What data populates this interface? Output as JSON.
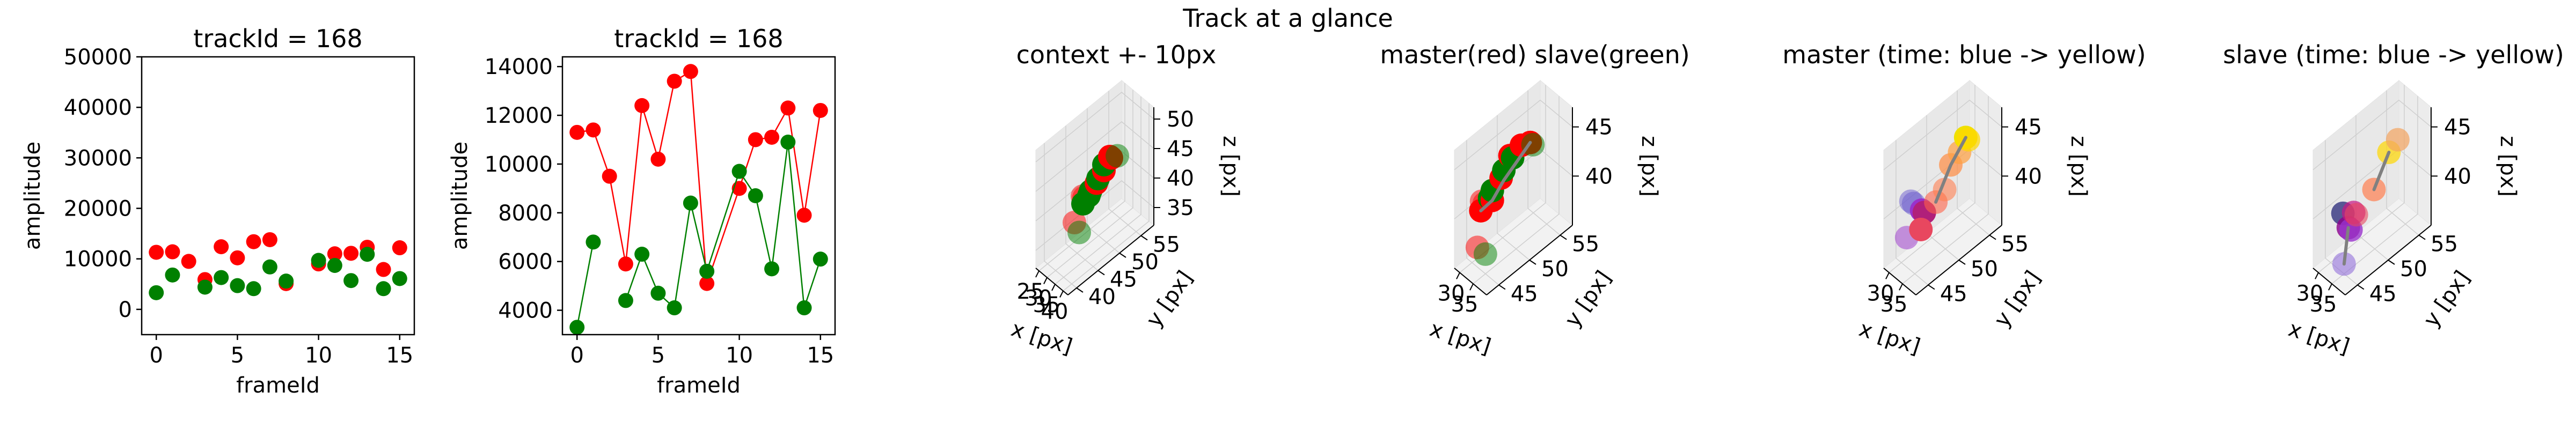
{
  "figure": {
    "suptitle": "Track at a glance"
  },
  "chart_data": [
    {
      "type": "scatter",
      "title": "trackId = 168",
      "xlabel": "frameId",
      "ylabel": "amplitude",
      "xlim": [
        -0.9,
        15.9
      ],
      "ylim": [
        -5000,
        50000
      ],
      "xticks": [
        0,
        5,
        10,
        15
      ],
      "yticks": [
        0,
        10000,
        20000,
        30000,
        40000,
        50000
      ],
      "lines": false,
      "series": [
        {
          "color": "#ff0000",
          "x": [
            0,
            1,
            2,
            3,
            4,
            5,
            6,
            7,
            8,
            10,
            11,
            12,
            13,
            14,
            15
          ],
          "y": [
            11300,
            11400,
            9500,
            5900,
            12400,
            10200,
            13400,
            13800,
            5100,
            9000,
            11000,
            11100,
            12300,
            7900,
            12200
          ]
        },
        {
          "color": "#008000",
          "x": [
            0,
            1,
            2,
            3,
            4,
            5,
            6,
            7,
            8,
            10,
            11,
            12,
            13,
            14,
            15
          ],
          "y": [
            3300,
            6800,
            null,
            4400,
            6300,
            4700,
            4100,
            8400,
            5600,
            9700,
            8700,
            5700,
            10900,
            4100,
            6100
          ]
        }
      ]
    },
    {
      "type": "line",
      "title": "trackId = 168",
      "xlabel": "frameId",
      "ylabel": "amplitude",
      "xlim": [
        -0.9,
        15.9
      ],
      "ylim": [
        3000,
        14400
      ],
      "xticks": [
        0,
        5,
        10,
        15
      ],
      "yticks": [
        4000,
        6000,
        8000,
        10000,
        12000,
        14000
      ],
      "lines": true,
      "series": [
        {
          "color": "#ff0000",
          "x": [
            0,
            1,
            2,
            3,
            4,
            5,
            6,
            7,
            8,
            10,
            11,
            12,
            13,
            14,
            15
          ],
          "y": [
            11300,
            11400,
            9500,
            5900,
            12400,
            10200,
            13400,
            13800,
            5100,
            9000,
            11000,
            11100,
            12300,
            7900,
            12200
          ]
        },
        {
          "color": "#008000",
          "x": [
            0,
            1,
            2,
            3,
            4,
            5,
            6,
            7,
            8,
            10,
            11,
            12,
            13,
            14,
            15
          ],
          "y": [
            3300,
            6800,
            null,
            4400,
            6300,
            4700,
            4100,
            8400,
            5600,
            9700,
            8700,
            5700,
            10900,
            4100,
            6100
          ]
        }
      ]
    },
    {
      "type": "scatter3d",
      "title": "context +- 10px",
      "xlabel": "x [px]",
      "ylabel": "y [px]",
      "zlabel": "z [px]",
      "xlim": [
        23,
        43
      ],
      "ylim": [
        38,
        58
      ],
      "zlim": [
        32,
        52
      ],
      "xticks": [
        25,
        30,
        35,
        40
      ],
      "yticks": [
        40,
        45,
        50,
        55
      ],
      "zticks": [
        35,
        40,
        45,
        50
      ],
      "points": [
        {
          "x": 28,
          "y": 47,
          "z": 40,
          "c": "#ff0000",
          "a": 0.5
        },
        {
          "x": 29,
          "y": 47,
          "z": 40,
          "c": "#ff0000",
          "a": 0.5
        },
        {
          "x": 31,
          "y": 44,
          "z": 38,
          "c": "#ff0000",
          "a": 0.5
        },
        {
          "x": 31,
          "y": 46,
          "z": 40,
          "c": "#008000",
          "a": 1
        },
        {
          "x": 32,
          "y": 47,
          "z": 41,
          "c": "#008000",
          "a": 1
        },
        {
          "x": 33,
          "y": 47,
          "z": 42,
          "c": "#008000",
          "a": 1
        },
        {
          "x": 34,
          "y": 48,
          "z": 43,
          "c": "#ff0000",
          "a": 1
        },
        {
          "x": 35,
          "y": 48,
          "z": 44,
          "c": "#008000",
          "a": 1
        },
        {
          "x": 36,
          "y": 49,
          "z": 45,
          "c": "#ff0000",
          "a": 1
        },
        {
          "x": 36,
          "y": 49,
          "z": 46,
          "c": "#008000",
          "a": 1
        },
        {
          "x": 37,
          "y": 50,
          "z": 47,
          "c": "#ff0000",
          "a": 1
        },
        {
          "x": 38,
          "y": 50,
          "z": 47,
          "c": "#ff0000",
          "a": 1
        },
        {
          "x": 39,
          "y": 51,
          "z": 47,
          "c": "#008000",
          "a": 0.5
        },
        {
          "x": 34,
          "y": 44,
          "z": 37,
          "c": "#008000",
          "a": 0.5
        }
      ],
      "paths": []
    },
    {
      "type": "scatter3d",
      "title": "master(red) slave(green)",
      "xlabel": "x [px]",
      "ylabel": "y [px]",
      "zlabel": "z [px]",
      "xlim": [
        28,
        40
      ],
      "ylim": [
        43,
        57
      ],
      "zlim": [
        35,
        47
      ],
      "xticks": [
        30,
        35
      ],
      "yticks": [
        45,
        50,
        55
      ],
      "zticks": [
        40,
        45
      ],
      "points": [
        {
          "x": 29,
          "y": 47,
          "z": 40,
          "c": "#ff0000",
          "a": 0.5
        },
        {
          "x": 30,
          "y": 47,
          "z": 40,
          "c": "#ff0000",
          "a": 0.5
        },
        {
          "x": 31,
          "y": 46,
          "z": 40,
          "c": "#ff0000",
          "a": 1
        },
        {
          "x": 32,
          "y": 47,
          "z": 41,
          "c": "#008000",
          "a": 1
        },
        {
          "x": 33,
          "y": 47,
          "z": 41,
          "c": "#ff0000",
          "a": 1
        },
        {
          "x": 33,
          "y": 47,
          "z": 42,
          "c": "#008000",
          "a": 1
        },
        {
          "x": 34,
          "y": 48,
          "z": 43,
          "c": "#ff0000",
          "a": 1
        },
        {
          "x": 35,
          "y": 48,
          "z": 44,
          "c": "#008000",
          "a": 1
        },
        {
          "x": 35,
          "y": 49,
          "z": 45,
          "c": "#ff0000",
          "a": 1
        },
        {
          "x": 36,
          "y": 49,
          "z": 45,
          "c": "#008000",
          "a": 1
        },
        {
          "x": 37,
          "y": 50,
          "z": 46,
          "c": "#ff0000",
          "a": 1
        },
        {
          "x": 38,
          "y": 51,
          "z": 46,
          "c": "#ff0000",
          "a": 1
        },
        {
          "x": 39,
          "y": 51,
          "z": 46,
          "c": "#008000",
          "a": 0.5
        },
        {
          "x": 32,
          "y": 45,
          "z": 37,
          "c": "#ff0000",
          "a": 0.5
        },
        {
          "x": 35,
          "y": 45,
          "z": 37,
          "c": "#008000",
          "a": 0.5
        }
      ],
      "paths": [
        {
          "color": "#808080",
          "pts": [
            [
              31,
              46,
              40
            ],
            [
              33,
              47,
              41
            ],
            [
              35,
              48,
              43
            ],
            [
              37,
              50,
              45
            ],
            [
              38,
              51,
              46
            ]
          ]
        }
      ]
    },
    {
      "type": "scatter3d",
      "title": "master (time: blue -> yellow)",
      "xlabel": "x [px]",
      "ylabel": "y [px]",
      "zlabel": "z [px]",
      "xlim": [
        28,
        40
      ],
      "ylim": [
        43,
        57
      ],
      "zlim": [
        35,
        47
      ],
      "xticks": [
        30,
        35
      ],
      "yticks": [
        45,
        50,
        55
      ],
      "zticks": [
        40,
        45
      ],
      "points": [
        {
          "x": 29,
          "y": 47,
          "z": 40,
          "c": "#6a5acd",
          "a": 0.5
        },
        {
          "x": 30,
          "y": 47,
          "z": 40,
          "c": "#6a5acd",
          "a": 0.5
        },
        {
          "x": 32,
          "y": 45,
          "z": 38,
          "c": "#9932cc",
          "a": 0.5
        },
        {
          "x": 33,
          "y": 47,
          "z": 40,
          "c": "#9932cc",
          "a": 1
        },
        {
          "x": 34,
          "y": 47,
          "z": 40,
          "c": "#b0207a",
          "a": 1
        },
        {
          "x": 35,
          "y": 46,
          "z": 39,
          "c": "#e8475f",
          "a": 1
        },
        {
          "x": 36,
          "y": 48,
          "z": 41,
          "c": "#ff6347",
          "a": 0.6
        },
        {
          "x": 37,
          "y": 49,
          "z": 42,
          "c": "#ff7f50",
          "a": 0.6
        },
        {
          "x": 37,
          "y": 50,
          "z": 44,
          "c": "#ff8c42",
          "a": 0.7
        },
        {
          "x": 38,
          "y": 51,
          "z": 45,
          "c": "#ffa040",
          "a": 0.7
        },
        {
          "x": 38,
          "y": 52,
          "z": 46,
          "c": "#f0e000",
          "a": 1
        },
        {
          "x": 39,
          "y": 52,
          "z": 46,
          "c": "#ffd700",
          "a": 0.7
        }
      ],
      "paths": [
        {
          "color": "#808080",
          "pts": [
            [
              36,
              48,
              41
            ],
            [
              37,
              50,
              44
            ],
            [
              38,
              52,
              46
            ]
          ]
        }
      ]
    },
    {
      "type": "scatter3d",
      "title": "slave (time: blue -> yellow)",
      "xlabel": "x [px]",
      "ylabel": "y [px]",
      "zlabel": "z [px]",
      "xlim": [
        28,
        40
      ],
      "ylim": [
        43,
        57
      ],
      "zlim": [
        35,
        47
      ],
      "xticks": [
        30,
        35
      ],
      "yticks": [
        45,
        50,
        55
      ],
      "zticks": [
        40,
        45
      ],
      "points": [
        {
          "x": 30,
          "y": 47,
          "z": 39,
          "c": "#191970",
          "a": 0.7
        },
        {
          "x": 32,
          "y": 47,
          "z": 38,
          "c": "#8b008b",
          "a": 0.8
        },
        {
          "x": 33,
          "y": 47,
          "z": 38,
          "c": "#9932cc",
          "a": 0.8
        },
        {
          "x": 34,
          "y": 47,
          "z": 40,
          "c": "#c71585",
          "a": 0.7
        },
        {
          "x": 35,
          "y": 47,
          "z": 40,
          "c": "#e8475f",
          "a": 0.6
        },
        {
          "x": 37,
          "y": 49,
          "z": 42,
          "c": "#ff7f50",
          "a": 0.7
        },
        {
          "x": 38,
          "y": 51,
          "z": 45,
          "c": "#ffd700",
          "a": 0.7
        },
        {
          "x": 39,
          "y": 52,
          "z": 46,
          "c": "#f4a460",
          "a": 0.7
        },
        {
          "x": 35,
          "y": 45,
          "z": 36,
          "c": "#9370db",
          "a": 0.6
        }
      ],
      "paths": [
        {
          "color": "#808080",
          "pts": [
            [
              32,
              47,
              38
            ],
            [
              35,
              45,
              36
            ]
          ]
        },
        {
          "color": "#808080",
          "pts": [
            [
              37,
              49,
              42
            ],
            [
              38,
              51,
              45
            ]
          ]
        }
      ]
    }
  ]
}
